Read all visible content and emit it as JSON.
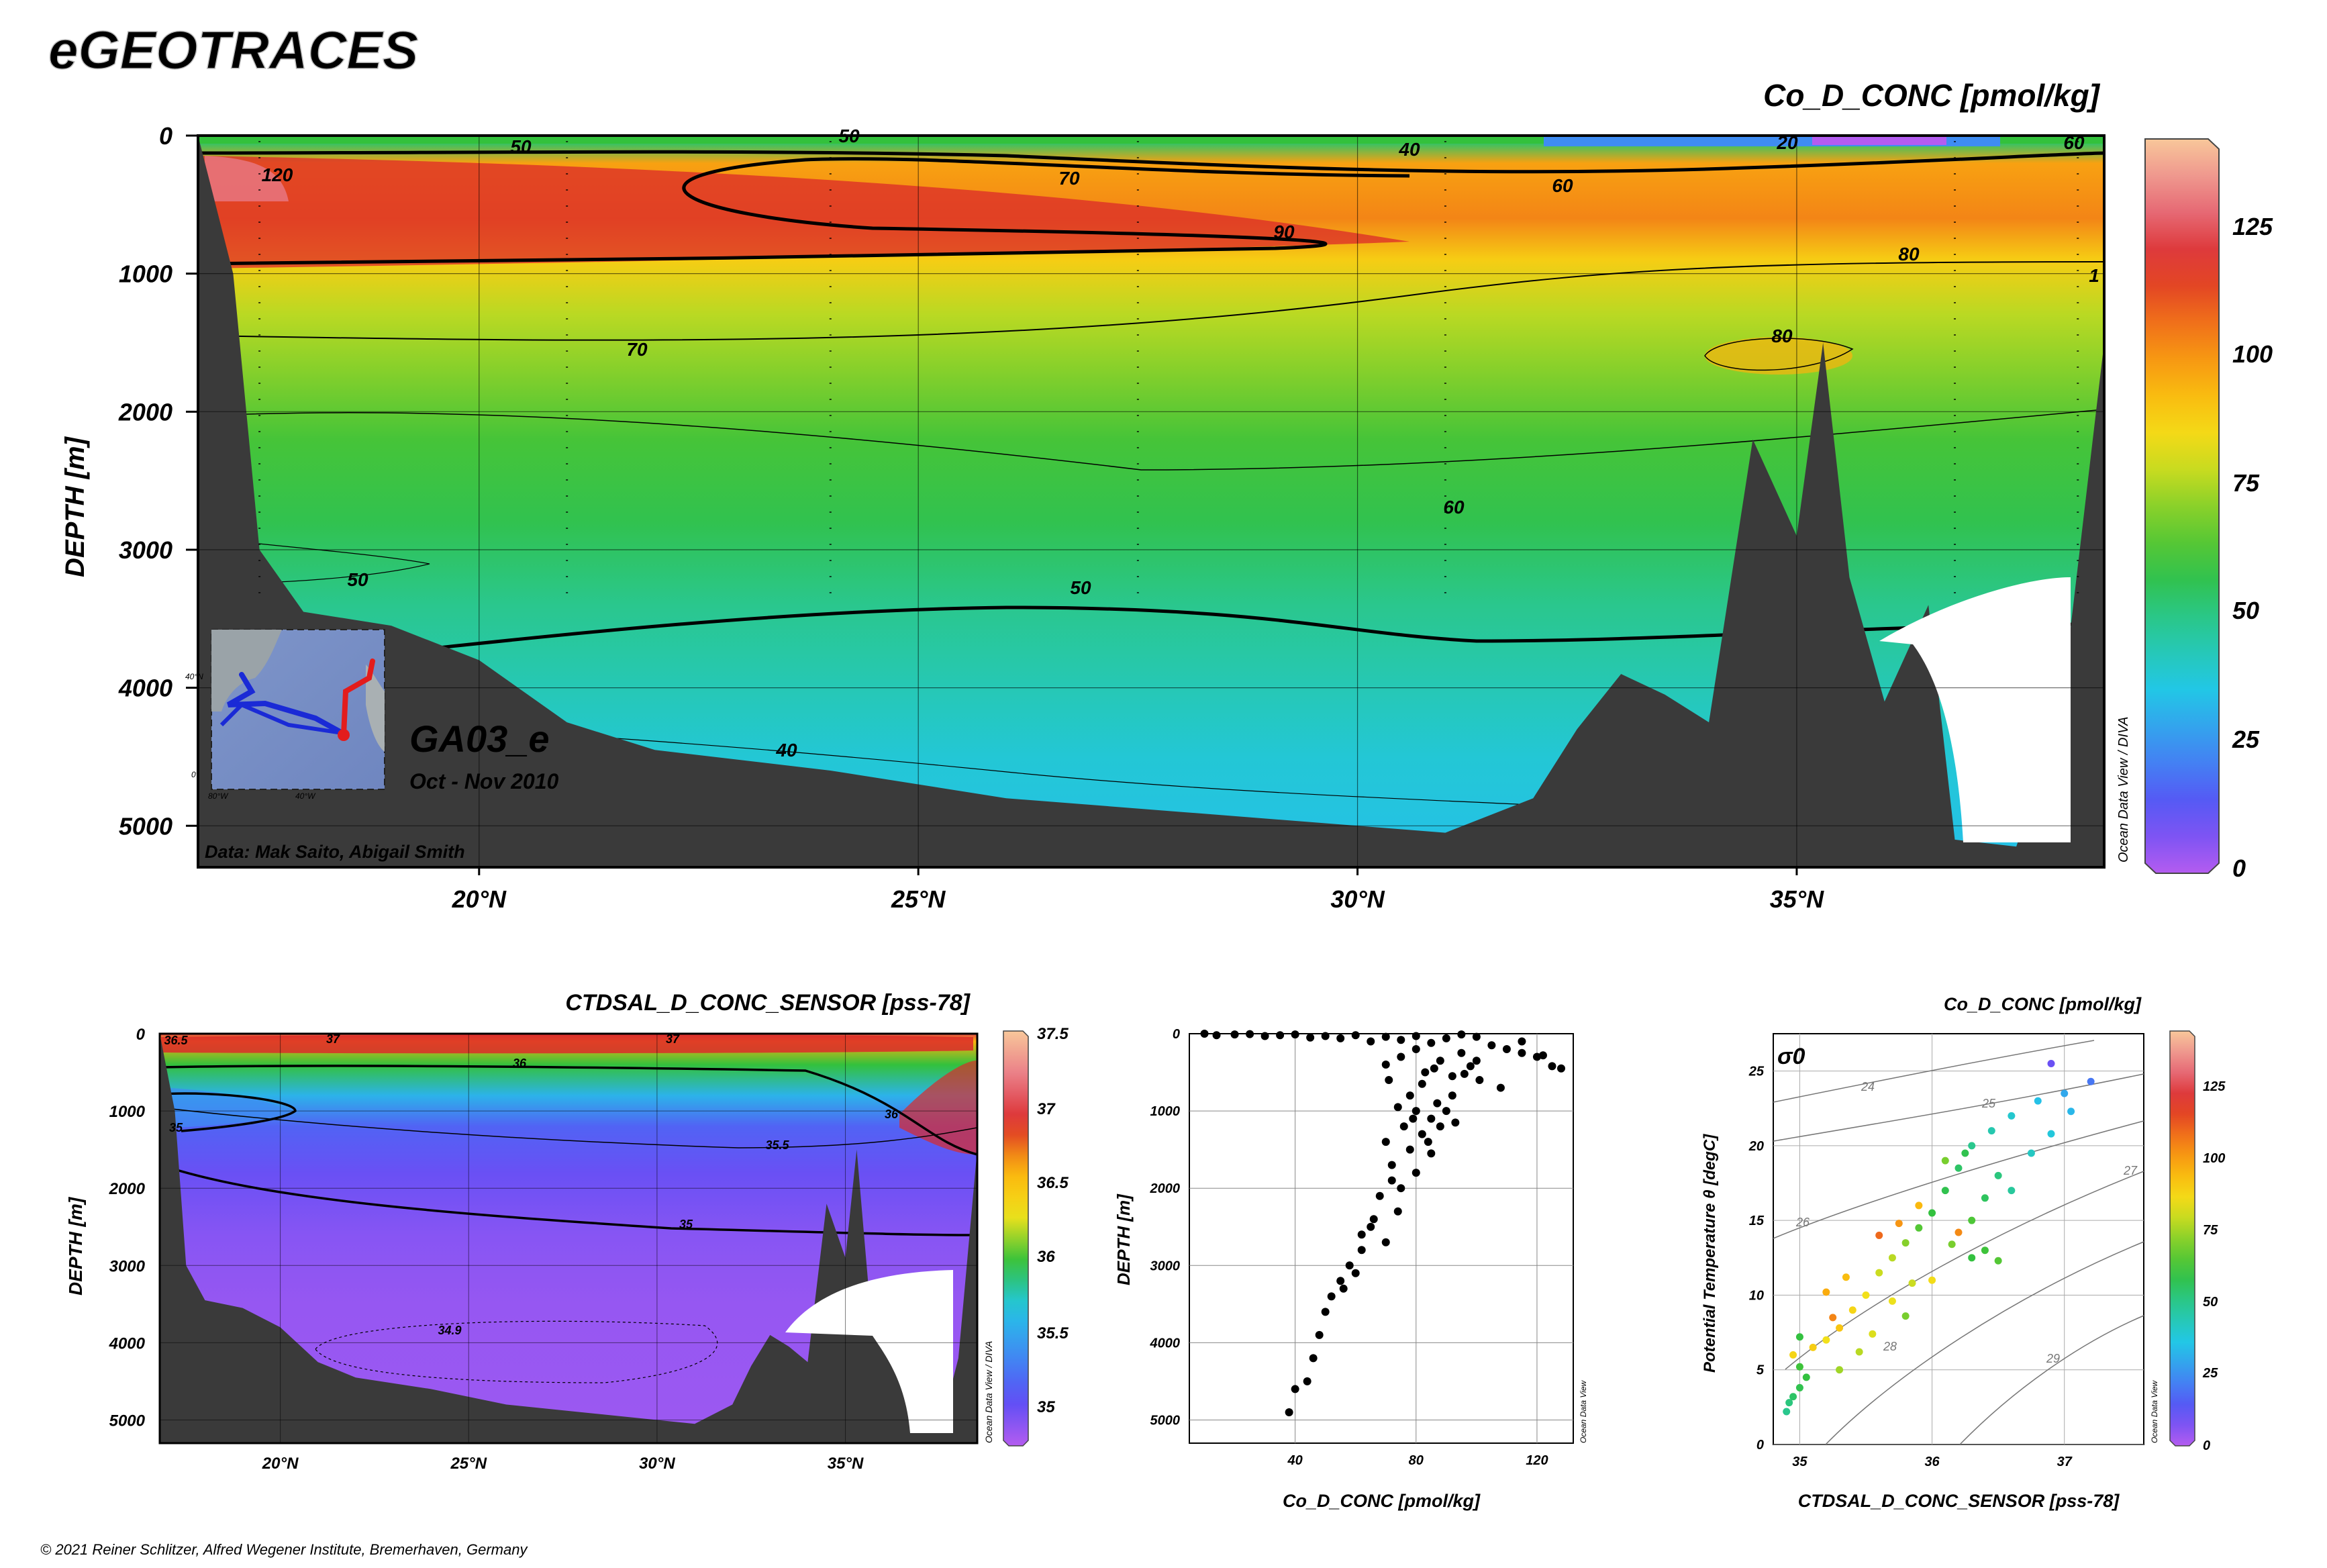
{
  "brand": "eGEOTRACES",
  "copyright": "© 2021 Reiner Schlitzer, Alfred Wegener Institute, Bremerhaven, Germany",
  "colors": {
    "ramp_co": [
      "#b45cf0",
      "#5a4ef5",
      "#3f8cf2",
      "#22c7e6",
      "#28c89a",
      "#33c13c",
      "#8ad12a",
      "#f2e21a",
      "#fbb30d",
      "#f0701a",
      "#db2a2a",
      "#e97986",
      "#f8c79a"
    ],
    "ramp_sal": [
      "#b45cf0",
      "#5a4ef5",
      "#3f8cf2",
      "#22c7e6",
      "#33c13c",
      "#f2e21a",
      "#fbb30d",
      "#db2a2a",
      "#e97986",
      "#f8c79a"
    ],
    "bathymetry": "#3a3a3a"
  },
  "main_section": {
    "title": "Co_D_CONC [pmol/kg]",
    "ylabel": "DEPTH [m]",
    "section_name": "GA03_e",
    "period": "Oct - Nov 2010",
    "credit": "Data: Mak Saito, Abigail Smith",
    "watermark": "Ocean Data View / DIVA",
    "colorbar_ticks": [
      "125",
      "100",
      "75",
      "50",
      "25",
      "0"
    ],
    "contour_labels": [
      "50",
      "50",
      "40",
      "20",
      "60",
      "120",
      "70",
      "60",
      "90",
      "80",
      "1",
      "70",
      "80",
      "60",
      "50",
      "50",
      "40"
    ],
    "map_labels": [
      "40°N",
      "0°",
      "80°W",
      "40°W"
    ]
  },
  "sal_section": {
    "title": "CTDSAL_D_CONC_SENSOR [pss-78]",
    "ylabel": "DEPTH [m]",
    "watermark": "Ocean Data View / DIVA",
    "colorbar_ticks": [
      "37.5",
      "37",
      "36.5",
      "36",
      "35.5",
      "35"
    ],
    "contour_labels": [
      "36.5",
      "37",
      "37",
      "36",
      "35",
      "36",
      "35.5",
      "35",
      "34.9"
    ]
  },
  "profile_plot": {
    "xlabel": "Co_D_CONC [pmol/kg]",
    "ylabel": "DEPTH [m]",
    "watermark": "Ocean Data View"
  },
  "ts_plot": {
    "title": "Co_D_CONC [pmol/kg]",
    "xlabel": "CTDSAL_D_CONC_SENSOR [pss-78]",
    "ylabel": "Potential Temperature θ [degC]",
    "sigma_label": "σ0",
    "isopycnal_labels": [
      "24",
      "25",
      "26",
      "27",
      "28",
      "29"
    ],
    "colorbar_ticks": [
      "125",
      "100",
      "75",
      "50",
      "25",
      "0"
    ],
    "watermark": "Ocean Data View"
  },
  "chart_data": [
    {
      "type": "heatmap",
      "title": "Co_D_CONC [pmol/kg]",
      "xlabel": "",
      "ylabel": "DEPTH [m]",
      "x_ticks": [
        "20°N",
        "25°N",
        "30°N",
        "35°N"
      ],
      "y_ticks": [
        "0",
        "1000",
        "2000",
        "3000",
        "4000",
        "5000"
      ],
      "xlim": [
        16.8,
        38.5
      ],
      "ylim": [
        5300,
        0
      ],
      "color_range": [
        0,
        145
      ],
      "bands": [
        {
          "depth": 0,
          "value": 40
        },
        {
          "depth": 50,
          "value": 55
        },
        {
          "depth": 200,
          "value": 100
        },
        {
          "depth": 600,
          "value": 105
        },
        {
          "depth": 900,
          "value": 90
        },
        {
          "depth": 1300,
          "value": 78
        },
        {
          "depth": 1700,
          "value": 72
        },
        {
          "depth": 2200,
          "value": 63
        },
        {
          "depth": 2800,
          "value": 58
        },
        {
          "depth": 3400,
          "value": 50
        },
        {
          "depth": 4000,
          "value": 44
        },
        {
          "depth": 4500,
          "value": 39
        },
        {
          "depth": 5200,
          "value": 35
        }
      ],
      "bathymetry": [
        [
          16.8,
          0
        ],
        [
          17.2,
          1000
        ],
        [
          17.5,
          3000
        ],
        [
          18,
          3450
        ],
        [
          19,
          3550
        ],
        [
          20,
          3800
        ],
        [
          21,
          4250
        ],
        [
          22,
          4450
        ],
        [
          24,
          4600
        ],
        [
          26,
          4800
        ],
        [
          28,
          4900
        ],
        [
          30,
          5000
        ],
        [
          31,
          5050
        ],
        [
          32,
          4800
        ],
        [
          32.5,
          4300
        ],
        [
          33,
          3900
        ],
        [
          33.5,
          4050
        ],
        [
          34,
          4250
        ],
        [
          34.5,
          2200
        ],
        [
          35,
          2900
        ],
        [
          35.3,
          1500
        ],
        [
          35.6,
          3200
        ],
        [
          36,
          4100
        ],
        [
          36.5,
          3400
        ],
        [
          36.8,
          5100
        ],
        [
          37.5,
          5150
        ],
        [
          38,
          4200
        ],
        [
          38.5,
          1500
        ]
      ]
    },
    {
      "type": "heatmap",
      "title": "CTDSAL_D_CONC_SENSOR [pss-78]",
      "xlabel": "",
      "ylabel": "DEPTH [m]",
      "x_ticks": [
        "20°N",
        "25°N",
        "30°N",
        "35°N"
      ],
      "y_ticks": [
        "0",
        "1000",
        "2000",
        "3000",
        "4000",
        "5000"
      ],
      "xlim": [
        16.8,
        38.5
      ],
      "ylim": [
        5300,
        0
      ],
      "color_range": [
        34.8,
        37.5
      ],
      "bands": [
        {
          "depth": 0,
          "value": 37.0
        },
        {
          "depth": 100,
          "value": 36.6
        },
        {
          "depth": 400,
          "value": 36.0
        },
        {
          "depth": 800,
          "value": 35.6
        },
        {
          "depth": 1200,
          "value": 35.2
        },
        {
          "depth": 1800,
          "value": 35.05
        },
        {
          "depth": 2600,
          "value": 34.95
        },
        {
          "depth": 3500,
          "value": 34.9
        },
        {
          "depth": 5200,
          "value": 34.88
        }
      ]
    },
    {
      "type": "scatter",
      "title": "",
      "xlabel": "Co_D_CONC [pmol/kg]",
      "ylabel": "DEPTH [m]",
      "xlim": [
        5,
        132
      ],
      "ylim": [
        5300,
        0
      ],
      "x_ticks": [
        40,
        80,
        120
      ],
      "y_ticks": [
        0,
        1000,
        2000,
        3000,
        4000,
        5000
      ],
      "points": [
        [
          10,
          0
        ],
        [
          14,
          20
        ],
        [
          20,
          10
        ],
        [
          25,
          5
        ],
        [
          30,
          30
        ],
        [
          35,
          20
        ],
        [
          40,
          10
        ],
        [
          45,
          50
        ],
        [
          50,
          30
        ],
        [
          55,
          60
        ],
        [
          60,
          20
        ],
        [
          65,
          100
        ],
        [
          70,
          40
        ],
        [
          75,
          80
        ],
        [
          80,
          30
        ],
        [
          85,
          120
        ],
        [
          90,
          60
        ],
        [
          95,
          10
        ],
        [
          100,
          40
        ],
        [
          105,
          150
        ],
        [
          110,
          200
        ],
        [
          115,
          250
        ],
        [
          120,
          300
        ],
        [
          125,
          420
        ],
        [
          128,
          450
        ],
        [
          95,
          250
        ],
        [
          88,
          350
        ],
        [
          98,
          420
        ],
        [
          92,
          550
        ],
        [
          108,
          700
        ],
        [
          101,
          600
        ],
        [
          96,
          520
        ],
        [
          80,
          200
        ],
        [
          75,
          300
        ],
        [
          70,
          400
        ],
        [
          86,
          450
        ],
        [
          82,
          650
        ],
        [
          78,
          800
        ],
        [
          74,
          950
        ],
        [
          80,
          1000
        ],
        [
          85,
          1100
        ],
        [
          90,
          1000
        ],
        [
          76,
          1200
        ],
        [
          82,
          1300
        ],
        [
          88,
          1200
        ],
        [
          93,
          1150
        ],
        [
          70,
          1400
        ],
        [
          78,
          1500
        ],
        [
          85,
          1550
        ],
        [
          72,
          1700
        ],
        [
          80,
          1800
        ],
        [
          75,
          2000
        ],
        [
          68,
          2100
        ],
        [
          74,
          2300
        ],
        [
          65,
          2500
        ],
        [
          70,
          2700
        ],
        [
          62,
          2800
        ],
        [
          58,
          3000
        ],
        [
          55,
          3200
        ],
        [
          52,
          3400
        ],
        [
          50,
          3600
        ],
        [
          48,
          3900
        ],
        [
          46,
          4200
        ],
        [
          44,
          4500
        ],
        [
          40,
          4600
        ],
        [
          38,
          4900
        ],
        [
          62,
          2600
        ],
        [
          66,
          2400
        ],
        [
          72,
          1900
        ],
        [
          84,
          1400
        ],
        [
          79,
          1100
        ],
        [
          87,
          900
        ],
        [
          92,
          800
        ],
        [
          71,
          600
        ],
        [
          83,
          500
        ],
        [
          100,
          350
        ],
        [
          115,
          100
        ],
        [
          122,
          280
        ],
        [
          60,
          3100
        ],
        [
          56,
          3300
        ]
      ]
    },
    {
      "type": "scatter",
      "title": "Co_D_CONC [pmol/kg]",
      "xlabel": "CTDSAL_D_CONC_SENSOR [pss-78]",
      "ylabel": "Potential Temperature θ [degC]",
      "xlim": [
        34.8,
        37.6
      ],
      "ylim": [
        0,
        27.5
      ],
      "x_ticks": [
        35,
        36,
        37
      ],
      "y_ticks": [
        0,
        5,
        10,
        15,
        20,
        25
      ],
      "points": [
        {
          "x": 34.9,
          "y": 2.2,
          "c": 50
        },
        {
          "x": 34.92,
          "y": 2.8,
          "c": 52
        },
        {
          "x": 34.95,
          "y": 3.2,
          "c": 55
        },
        {
          "x": 35.0,
          "y": 3.8,
          "c": 58
        },
        {
          "x": 35.05,
          "y": 4.5,
          "c": 60
        },
        {
          "x": 35.0,
          "y": 5.2,
          "c": 62
        },
        {
          "x": 34.95,
          "y": 6.0,
          "c": 88
        },
        {
          "x": 35.1,
          "y": 6.5,
          "c": 90
        },
        {
          "x": 35.2,
          "y": 7.0,
          "c": 85
        },
        {
          "x": 35.25,
          "y": 8.5,
          "c": 105
        },
        {
          "x": 35.3,
          "y": 7.8,
          "c": 92
        },
        {
          "x": 35.4,
          "y": 9.0,
          "c": 88
        },
        {
          "x": 35.5,
          "y": 10.0,
          "c": 85
        },
        {
          "x": 35.6,
          "y": 11.5,
          "c": 80
        },
        {
          "x": 35.7,
          "y": 12.5,
          "c": 78
        },
        {
          "x": 35.8,
          "y": 13.5,
          "c": 72
        },
        {
          "x": 35.9,
          "y": 14.5,
          "c": 65
        },
        {
          "x": 36.0,
          "y": 15.5,
          "c": 60
        },
        {
          "x": 36.1,
          "y": 17.0,
          "c": 58
        },
        {
          "x": 36.2,
          "y": 18.5,
          "c": 55
        },
        {
          "x": 36.3,
          "y": 20.0,
          "c": 50
        },
        {
          "x": 36.45,
          "y": 21.0,
          "c": 45
        },
        {
          "x": 36.6,
          "y": 22.0,
          "c": 40
        },
        {
          "x": 36.8,
          "y": 23.0,
          "c": 35
        },
        {
          "x": 37.0,
          "y": 23.5,
          "c": 30
        },
        {
          "x": 37.2,
          "y": 24.3,
          "c": 20
        },
        {
          "x": 36.9,
          "y": 25.5,
          "c": 10
        },
        {
          "x": 36.3,
          "y": 12.5,
          "c": 60
        },
        {
          "x": 36.4,
          "y": 13.0,
          "c": 62
        },
        {
          "x": 36.5,
          "y": 12.3,
          "c": 65
        },
        {
          "x": 35.6,
          "y": 14.0,
          "c": 110
        },
        {
          "x": 35.75,
          "y": 14.8,
          "c": 102
        },
        {
          "x": 35.9,
          "y": 16.0,
          "c": 95
        },
        {
          "x": 36.1,
          "y": 19.0,
          "c": 70
        },
        {
          "x": 36.25,
          "y": 19.5,
          "c": 58
        },
        {
          "x": 36.5,
          "y": 18.0,
          "c": 52
        },
        {
          "x": 35.3,
          "y": 5.0,
          "c": 75
        },
        {
          "x": 35.45,
          "y": 6.2,
          "c": 78
        },
        {
          "x": 35.55,
          "y": 7.4,
          "c": 82
        },
        {
          "x": 35.7,
          "y": 9.6,
          "c": 84
        },
        {
          "x": 35.85,
          "y": 10.8,
          "c": 80
        },
        {
          "x": 36.0,
          "y": 11.0,
          "c": 86
        },
        {
          "x": 36.15,
          "y": 13.4,
          "c": 70
        },
        {
          "x": 36.3,
          "y": 15.0,
          "c": 64
        },
        {
          "x": 36.6,
          "y": 17.0,
          "c": 48
        },
        {
          "x": 36.75,
          "y": 19.5,
          "c": 42
        },
        {
          "x": 36.9,
          "y": 20.8,
          "c": 38
        },
        {
          "x": 37.05,
          "y": 22.3,
          "c": 33
        },
        {
          "x": 35.2,
          "y": 10.2,
          "c": 98
        },
        {
          "x": 35.35,
          "y": 11.2,
          "c": 94
        },
        {
          "x": 35.0,
          "y": 7.2,
          "c": 60
        },
        {
          "x": 36.2,
          "y": 14.2,
          "c": 104
        },
        {
          "x": 36.4,
          "y": 16.5,
          "c": 56
        },
        {
          "x": 35.8,
          "y": 8.6,
          "c": 70
        }
      ]
    }
  ]
}
